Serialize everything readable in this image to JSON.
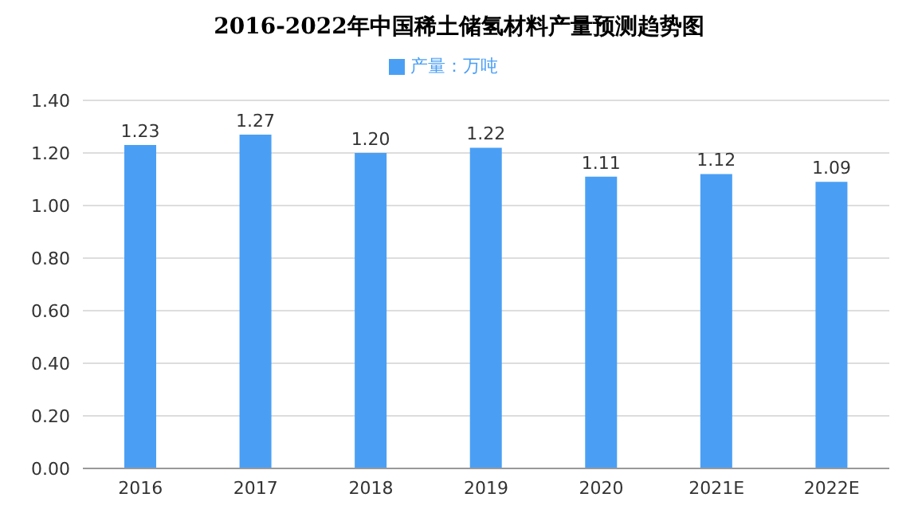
{
  "chart_data": {
    "type": "bar",
    "title": "2016-2022年中国稀土储氢材料产量预测趋势图",
    "categories": [
      "2016",
      "2017",
      "2018",
      "2019",
      "2020",
      "2021E",
      "2022E"
    ],
    "series": [
      {
        "name": "产量：万吨",
        "color": "#4a9ff5",
        "values": [
          1.23,
          1.27,
          1.2,
          1.22,
          1.11,
          1.12,
          1.09
        ],
        "value_labels": [
          "1.23",
          "1.27",
          "1.20",
          "1.22",
          "1.11",
          "1.12",
          "1.09"
        ]
      }
    ],
    "ylim": [
      0,
      1.4
    ],
    "yticks": [
      {
        "value": 0,
        "label": "0.00"
      },
      {
        "value": 0.2,
        "label": "0.20"
      },
      {
        "value": 0.4,
        "label": "0.40"
      },
      {
        "value": 0.6,
        "label": "0.60"
      },
      {
        "value": 0.8,
        "label": "0.80"
      },
      {
        "value": 1.0,
        "label": "1.00"
      },
      {
        "value": 1.2,
        "label": "1.20"
      },
      {
        "value": 1.4,
        "label": "1.40"
      }
    ],
    "grid": "y",
    "legend": "top"
  }
}
